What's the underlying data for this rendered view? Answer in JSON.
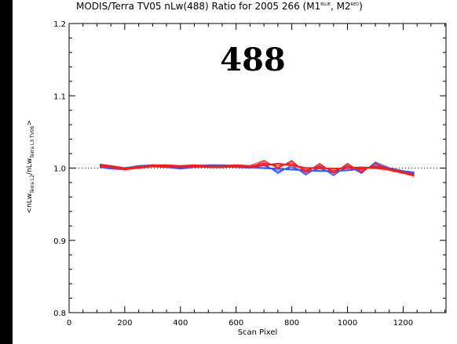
{
  "chart_data": {
    "type": "line",
    "title": "MODIS/Terra TV05 nLw(488) Ratio for 2005 266 (M1",
    "title_m1_sup": "BLUE",
    "title_mid": ", M2",
    "title_m2_sup": "RED",
    "title_end": ")",
    "annotation": "488",
    "xlabel": "Scan Pixel",
    "ylabel_parts": [
      "<nLw",
      "Terra L2",
      "/nLw",
      "Terra L3 TV06",
      ">"
    ],
    "xlim": [
      0,
      1354
    ],
    "ylim": [
      0.8,
      1.2
    ],
    "x_ticks": [
      0,
      200,
      400,
      600,
      800,
      1000,
      1200
    ],
    "x_tick_labels": [
      "0",
      "200",
      "400",
      "600",
      "800",
      "1000",
      "1200"
    ],
    "y_ticks": [
      0.8,
      0.9,
      1.0,
      1.1,
      1.2
    ],
    "y_tick_labels": [
      "0.8",
      "0.9",
      "1.0",
      "1.1",
      "1.2"
    ],
    "reference_line": 1.0,
    "grid": false,
    "series": [
      {
        "color": "#2f5cff",
        "x": [
          110,
          150,
          200,
          250,
          300,
          350,
          400,
          450,
          500,
          550,
          600,
          650,
          700,
          750,
          800,
          850,
          900,
          950,
          1000,
          1050,
          1100,
          1150,
          1200,
          1240
        ],
        "y": [
          1.002,
          1.0,
          0.999,
          1.002,
          1.003,
          1.002,
          1.0,
          1.002,
          1.003,
          1.003,
          1.002,
          1.001,
          1.0,
          0.999,
          0.998,
          0.997,
          0.996,
          0.996,
          0.997,
          0.999,
          1.002,
          0.999,
          0.995,
          0.993
        ]
      },
      {
        "color": "#ff1a1a",
        "x": [
          110,
          150,
          200,
          250,
          300,
          350,
          400,
          450,
          500,
          550,
          600,
          650,
          700,
          750,
          800,
          850,
          900,
          950,
          1000,
          1050,
          1100,
          1150,
          1200,
          1240
        ],
        "y": [
          1.004,
          1.002,
          0.999,
          1.001,
          1.003,
          1.003,
          1.002,
          1.003,
          1.002,
          1.002,
          1.003,
          1.002,
          1.004,
          1.006,
          1.004,
          1.0,
          1.0,
          0.999,
          1.0,
          1.001,
          1.0,
          0.998,
          0.994,
          0.99
        ]
      }
    ]
  }
}
